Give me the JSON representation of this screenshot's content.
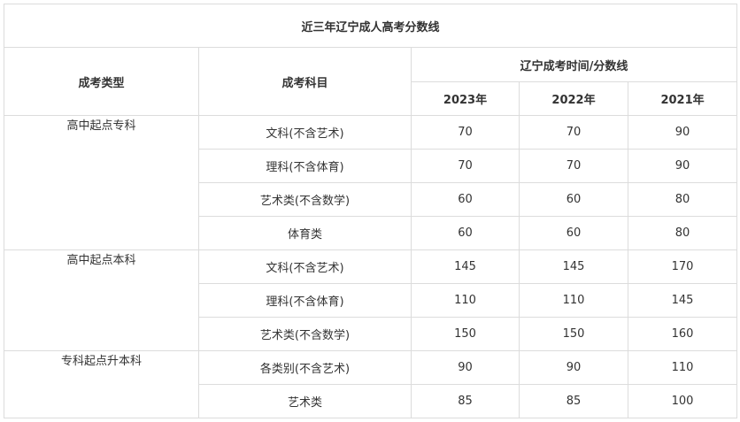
{
  "table": {
    "title": "近三年辽宁成人高考分数线",
    "header": {
      "type_label": "成考类型",
      "subject_label": "成考科目",
      "group_label": "辽宁成考时间/分数线",
      "years": [
        "2023年",
        "2022年",
        "2021年"
      ]
    },
    "groups": [
      {
        "type": "高中起点专科",
        "rows": [
          {
            "subject": "文科(不含艺术)",
            "scores": [
              "70",
              "70",
              "90"
            ]
          },
          {
            "subject": "理科(不含体育)",
            "scores": [
              "70",
              "70",
              "90"
            ]
          },
          {
            "subject": "艺术类(不含数学)",
            "scores": [
              "60",
              "60",
              "80"
            ]
          },
          {
            "subject": "体育类",
            "scores": [
              "60",
              "60",
              "80"
            ]
          }
        ]
      },
      {
        "type": "高中起点本科",
        "rows": [
          {
            "subject": "文科(不含艺术)",
            "scores": [
              "145",
              "145",
              "170"
            ]
          },
          {
            "subject": "理科(不含体育)",
            "scores": [
              "110",
              "110",
              "145"
            ]
          },
          {
            "subject": "艺术类(不含数学)",
            "scores": [
              "150",
              "150",
              "160"
            ]
          }
        ]
      },
      {
        "type": "专科起点升本科",
        "rows": [
          {
            "subject": "各类别(不含艺术)",
            "scores": [
              "90",
              "90",
              "110"
            ]
          },
          {
            "subject": "艺术类",
            "scores": [
              "85",
              "85",
              "100"
            ]
          }
        ]
      }
    ]
  }
}
